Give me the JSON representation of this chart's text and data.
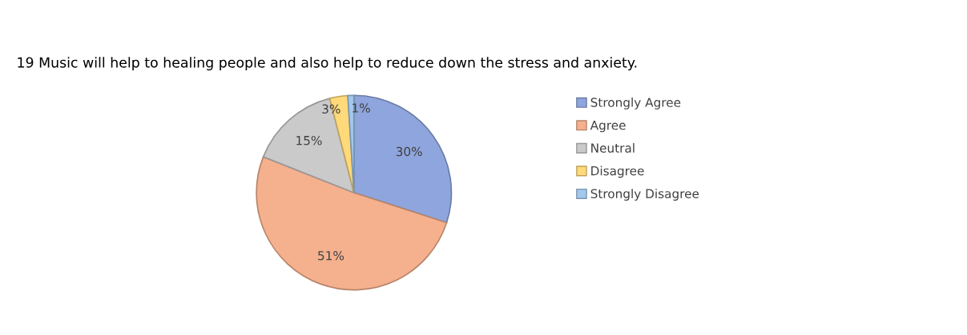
{
  "chart_data": {
    "type": "pie",
    "title": "19 Music will help to healing people and also help to reduce down the stress and anxiety.",
    "categories": [
      "Strongly Agree",
      "Agree",
      "Neutral",
      "Disagree",
      "Strongly Disagree"
    ],
    "values": [
      30,
      51,
      15,
      3,
      1
    ],
    "colors": [
      "#8fa5dd",
      "#f5b08e",
      "#cacaca",
      "#ffd97a",
      "#a3c8ec"
    ],
    "value_labels": [
      "30%",
      "51%",
      "15%",
      "3%",
      "1%"
    ],
    "legend": "right"
  }
}
